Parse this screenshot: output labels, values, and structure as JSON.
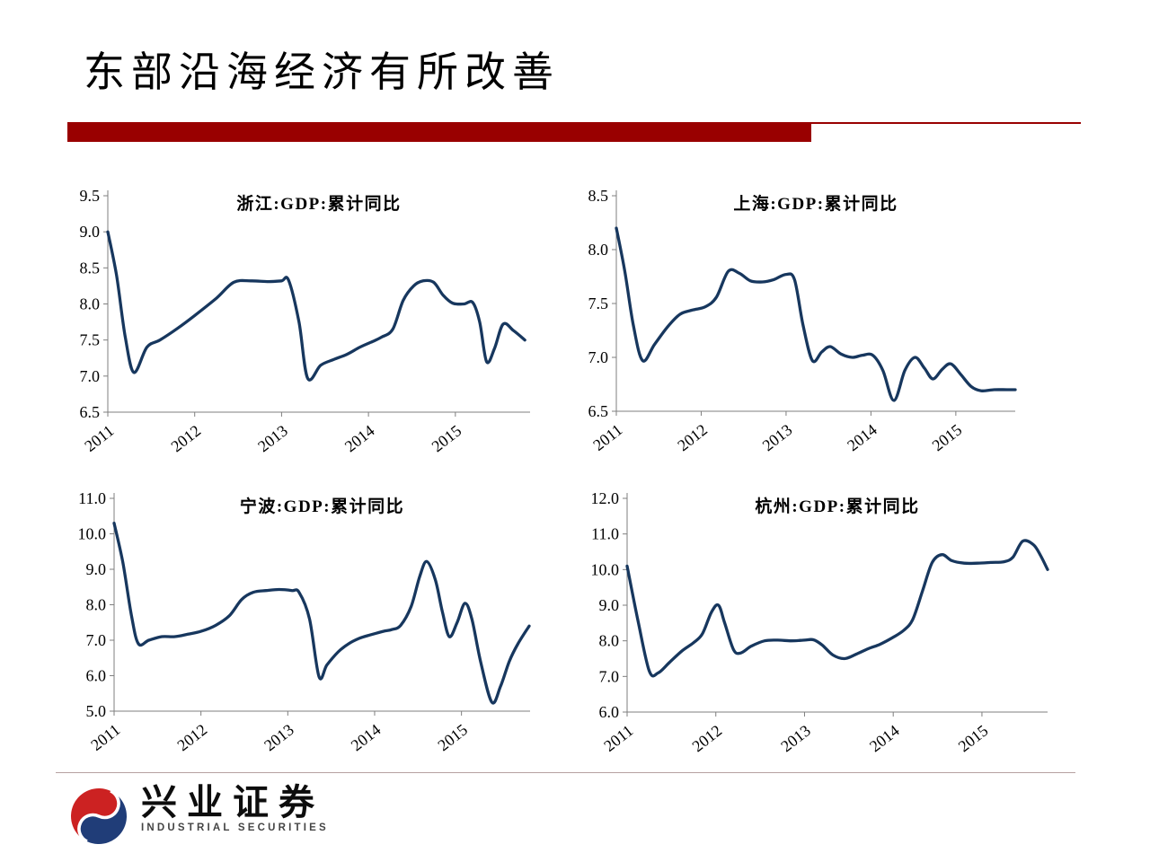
{
  "slide": {
    "title": "东部沿海经济有所改善",
    "accent_color": "#990000",
    "divider_color": "#9e8080",
    "axis_color": "#7f7f7f",
    "line_color": "#17375e"
  },
  "logo": {
    "company_cn": "兴业证券",
    "company_en": "INDUSTRIAL SECURITIES",
    "mark_red": "#cc2222",
    "mark_blue": "#203d78"
  },
  "chart_data": [
    {
      "id": "zhejiang",
      "type": "line",
      "title": "浙江:GDP:累计同比",
      "ylim": [
        6.5,
        9.5
      ],
      "xlim": [
        2011,
        2015.86
      ],
      "ytick_values": [
        6.5,
        7.0,
        7.5,
        8.0,
        8.5,
        9.0,
        9.5
      ],
      "ytick_labels": [
        "6.5",
        "7.0",
        "7.5",
        "8.0",
        "8.5",
        "9.0",
        "9.5"
      ],
      "xtick_values": [
        2011,
        2012,
        2013,
        2014,
        2015
      ],
      "xtick_labels": [
        "2011",
        "2012",
        "2013",
        "2014",
        "2015"
      ],
      "series": [
        {
          "name": "浙江:GDP:累计同比",
          "x": [
            2011.0,
            2011.1,
            2011.2,
            2011.3,
            2011.45,
            2011.6,
            2011.8,
            2012.0,
            2012.25,
            2012.45,
            2012.65,
            2012.85,
            2013.0,
            2013.08,
            2013.2,
            2013.3,
            2013.45,
            2013.6,
            2013.75,
            2013.9,
            2014.05,
            2014.15,
            2014.28,
            2014.4,
            2014.52,
            2014.63,
            2014.75,
            2014.86,
            2014.97,
            2015.1,
            2015.2,
            2015.28,
            2015.36,
            2015.45,
            2015.55,
            2015.67,
            2015.8
          ],
          "y": [
            9.0,
            8.4,
            7.55,
            7.05,
            7.4,
            7.5,
            7.66,
            7.84,
            8.08,
            8.3,
            8.32,
            8.31,
            8.32,
            8.33,
            7.75,
            6.97,
            7.15,
            7.23,
            7.3,
            7.4,
            7.48,
            7.54,
            7.65,
            8.05,
            8.25,
            8.32,
            8.3,
            8.12,
            8.01,
            8.0,
            8.02,
            7.75,
            7.2,
            7.38,
            7.72,
            7.63,
            7.5
          ]
        }
      ]
    },
    {
      "id": "shanghai",
      "type": "line",
      "title": "上海:GDP:累计同比",
      "ylim": [
        6.5,
        8.5
      ],
      "xlim": [
        2011,
        2015.7
      ],
      "ytick_values": [
        6.5,
        7.0,
        7.5,
        8.0,
        8.5
      ],
      "ytick_labels": [
        "6.5",
        "7.0",
        "7.5",
        "8.0",
        "8.5"
      ],
      "xtick_values": [
        2011,
        2012,
        2013,
        2014,
        2015
      ],
      "xtick_labels": [
        "2011",
        "2012",
        "2013",
        "2014",
        "2015"
      ],
      "series": [
        {
          "name": "上海:GDP:累计同比",
          "x": [
            2011.0,
            2011.1,
            2011.2,
            2011.31,
            2011.45,
            2011.6,
            2011.75,
            2011.9,
            2012.05,
            2012.18,
            2012.32,
            2012.45,
            2012.58,
            2012.72,
            2012.85,
            2013.0,
            2013.1,
            2013.2,
            2013.31,
            2013.42,
            2013.52,
            2013.65,
            2013.78,
            2013.9,
            2014.02,
            2014.14,
            2014.27,
            2014.4,
            2014.52,
            2014.63,
            2014.73,
            2014.84,
            2014.94,
            2015.06,
            2015.18,
            2015.3,
            2015.45,
            2015.6,
            2015.7
          ],
          "y": [
            8.2,
            7.8,
            7.3,
            6.97,
            7.12,
            7.28,
            7.4,
            7.44,
            7.47,
            7.56,
            7.8,
            7.78,
            7.71,
            7.7,
            7.72,
            7.77,
            7.72,
            7.3,
            6.97,
            7.05,
            7.1,
            7.03,
            7.0,
            7.02,
            7.02,
            6.88,
            6.6,
            6.88,
            7.0,
            6.9,
            6.8,
            6.89,
            6.94,
            6.84,
            6.73,
            6.69,
            6.7,
            6.7,
            6.7
          ]
        }
      ]
    },
    {
      "id": "ningbo",
      "type": "line",
      "title": "宁波:GDP:累计同比",
      "ylim": [
        5.0,
        11.0
      ],
      "xlim": [
        2011,
        2015.79
      ],
      "ytick_values": [
        5.0,
        6.0,
        7.0,
        8.0,
        9.0,
        10.0,
        11.0
      ],
      "ytick_labels": [
        "5.0",
        "6.0",
        "7.0",
        "8.0",
        "9.0",
        "10.0",
        "11.0"
      ],
      "xtick_values": [
        2011,
        2012,
        2013,
        2014,
        2015
      ],
      "xtick_labels": [
        "2011",
        "2012",
        "2013",
        "2014",
        "2015"
      ],
      "series": [
        {
          "name": "宁波:GDP:累计同比",
          "x": [
            2011.0,
            2011.1,
            2011.2,
            2011.28,
            2011.4,
            2011.55,
            2011.7,
            2011.85,
            2012.0,
            2012.17,
            2012.33,
            2012.47,
            2012.6,
            2012.75,
            2012.9,
            2013.05,
            2013.13,
            2013.25,
            2013.36,
            2013.45,
            2013.58,
            2013.7,
            2013.82,
            2013.95,
            2014.1,
            2014.2,
            2014.3,
            2014.42,
            2014.52,
            2014.6,
            2014.7,
            2014.78,
            2014.86,
            2014.95,
            2015.04,
            2015.12,
            2015.22,
            2015.35,
            2015.45,
            2015.55,
            2015.65,
            2015.78
          ],
          "y": [
            10.3,
            9.2,
            7.7,
            6.9,
            7.0,
            7.1,
            7.1,
            7.17,
            7.25,
            7.42,
            7.7,
            8.15,
            8.35,
            8.4,
            8.43,
            8.4,
            8.35,
            7.6,
            5.97,
            6.3,
            6.67,
            6.9,
            7.05,
            7.15,
            7.25,
            7.3,
            7.42,
            7.95,
            8.8,
            9.22,
            8.7,
            7.8,
            7.1,
            7.5,
            8.04,
            7.6,
            6.4,
            5.25,
            5.7,
            6.4,
            6.9,
            7.4
          ]
        }
      ]
    },
    {
      "id": "hangzhou",
      "type": "line",
      "title": "杭州:GDP:累计同比",
      "ylim": [
        6.0,
        12.0
      ],
      "xlim": [
        2011,
        2015.74
      ],
      "ytick_values": [
        6.0,
        7.0,
        8.0,
        9.0,
        10.0,
        11.0,
        12.0
      ],
      "ytick_labels": [
        "6.0",
        "7.0",
        "8.0",
        "9.0",
        "10.0",
        "11.0",
        "12.0"
      ],
      "xtick_values": [
        2011,
        2012,
        2013,
        2014,
        2015
      ],
      "xtick_labels": [
        "2011",
        "2012",
        "2013",
        "2014",
        "2015"
      ],
      "series": [
        {
          "name": "杭州:GDP:累计同比",
          "x": [
            2011.0,
            2011.12,
            2011.25,
            2011.35,
            2011.48,
            2011.62,
            2011.75,
            2011.85,
            2011.95,
            2012.03,
            2012.1,
            2012.2,
            2012.28,
            2012.4,
            2012.55,
            2012.7,
            2012.85,
            2013.0,
            2013.1,
            2013.2,
            2013.32,
            2013.45,
            2013.58,
            2013.72,
            2013.85,
            2014.0,
            2014.12,
            2014.22,
            2014.33,
            2014.44,
            2014.55,
            2014.66,
            2014.8,
            2014.95,
            2015.1,
            2015.25,
            2015.35,
            2015.46,
            2015.58,
            2015.66,
            2015.74
          ],
          "y": [
            10.1,
            8.6,
            7.15,
            7.1,
            7.4,
            7.72,
            7.95,
            8.2,
            8.8,
            9.0,
            8.5,
            7.75,
            7.66,
            7.85,
            8.0,
            8.02,
            8.0,
            8.02,
            8.03,
            7.88,
            7.6,
            7.5,
            7.62,
            7.78,
            7.9,
            8.1,
            8.3,
            8.6,
            9.4,
            10.2,
            10.42,
            10.25,
            10.18,
            10.18,
            10.2,
            10.22,
            10.35,
            10.8,
            10.7,
            10.4,
            10.0
          ]
        }
      ]
    }
  ]
}
